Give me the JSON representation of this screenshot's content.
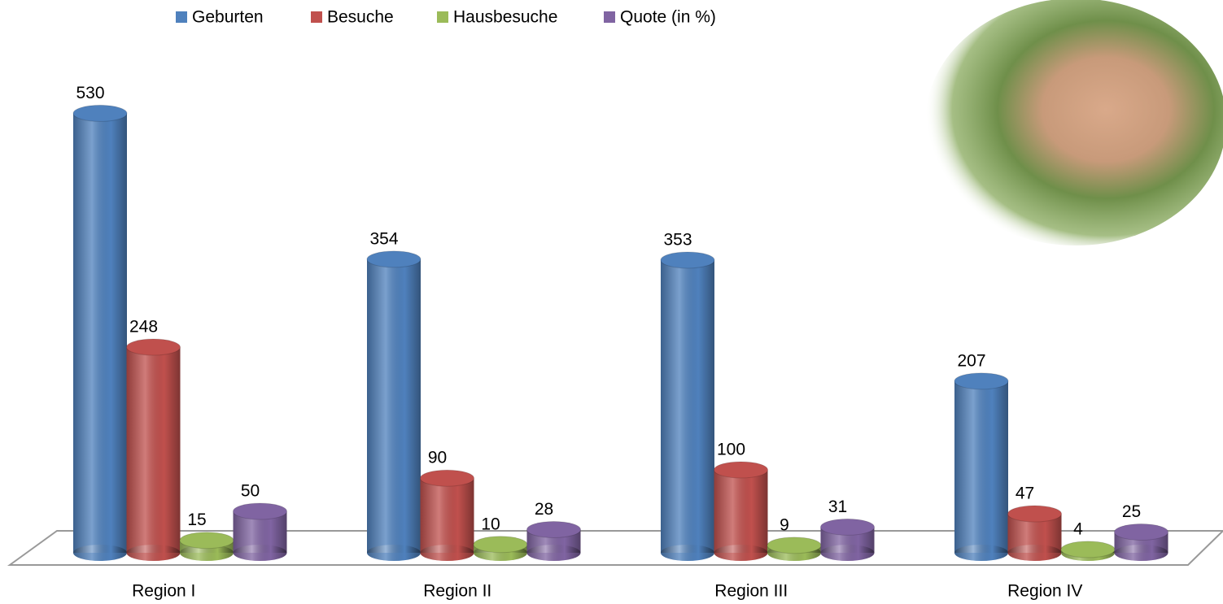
{
  "chart_data": {
    "type": "bar",
    "categories": [
      "Region I",
      "Region II",
      "Region III",
      "Region IV"
    ],
    "series": [
      {
        "name": "Geburten",
        "color": "#4f81bd",
        "values": [
          530,
          354,
          353,
          207
        ]
      },
      {
        "name": "Besuche",
        "color": "#c0504d",
        "values": [
          248,
          90,
          100,
          47
        ]
      },
      {
        "name": "Hausbesuche",
        "color": "#9bbb59",
        "values": [
          15,
          10,
          9,
          4
        ]
      },
      {
        "name": "Quote (in %)",
        "color": "#8064a2",
        "values": [
          50,
          28,
          31,
          25
        ]
      }
    ],
    "legend": "top"
  }
}
